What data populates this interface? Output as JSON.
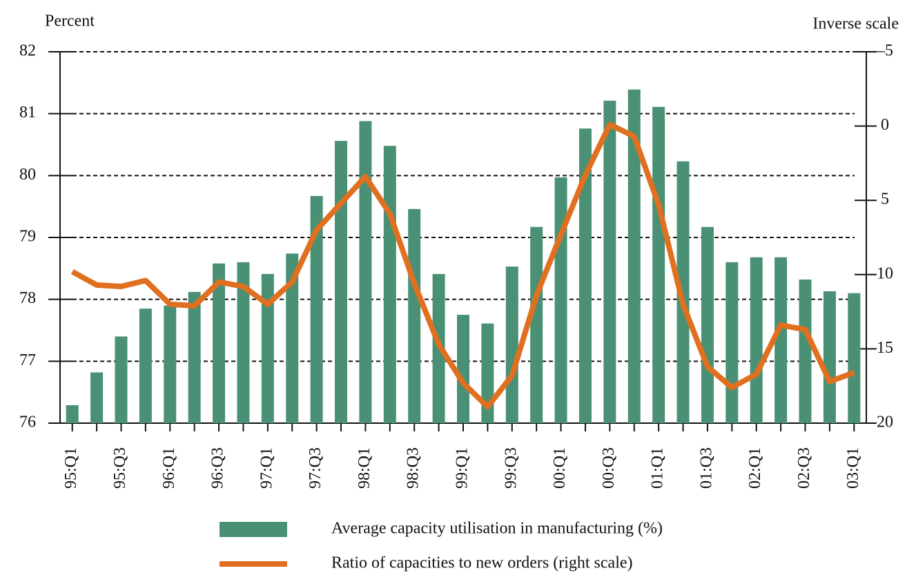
{
  "chart_data": {
    "type": "bar_line",
    "y_label": "Percent",
    "y2_label": "Inverse scale",
    "categories": [
      "95:Q1",
      null,
      "95:Q3",
      null,
      "96:Q1",
      null,
      "96:Q3",
      null,
      "97:Q1",
      null,
      "97:Q3",
      null,
      "98:Q1",
      null,
      "98:Q3",
      null,
      "99:Q1",
      null,
      "99:Q3",
      null,
      "00:Q1",
      null,
      "00:Q3",
      null,
      "01:Q1",
      null,
      "01:Q3",
      null,
      "02:Q1",
      null,
      "02:Q3",
      null,
      "03:Q1"
    ],
    "series": [
      {
        "name": "Average capacity utilisation in manufacturing (%)",
        "color": "#4a9074",
        "type": "bar",
        "values": [
          76.29,
          76.82,
          77.4,
          77.85,
          77.9,
          78.12,
          78.58,
          78.6,
          78.41,
          78.74,
          79.67,
          80.56,
          80.88,
          80.48,
          79.46,
          78.41,
          77.75,
          77.61,
          78.53,
          79.17,
          79.97,
          80.76,
          81.21,
          81.39,
          81.11,
          80.23,
          79.17,
          78.6,
          78.68,
          78.68,
          78.32,
          78.13,
          78.1
        ]
      },
      {
        "name": "Ratio of capacities to new orders (right scale)",
        "color": "#e07020",
        "type": "line",
        "axis": "y2",
        "values": [
          9.8,
          10.7,
          10.8,
          10.4,
          12.0,
          12.1,
          10.5,
          10.8,
          12.0,
          10.5,
          7.0,
          5.2,
          3.4,
          5.9,
          10.6,
          14.7,
          17.3,
          18.9,
          16.8,
          11.4,
          7.3,
          3.3,
          -0.1,
          0.7,
          5.3,
          12.0,
          16.2,
          17.6,
          16.7,
          13.4,
          13.7,
          17.2,
          16.6
        ]
      }
    ],
    "ylim": [
      76,
      82
    ],
    "yticks": [
      76,
      77,
      78,
      79,
      80,
      81,
      82
    ],
    "y2lim": [
      20,
      -5
    ],
    "y2ticks": [
      {
        "value": -5,
        "label": "–5"
      },
      0,
      5,
      10,
      15,
      20
    ],
    "grid": true,
    "legend": "bottom"
  }
}
